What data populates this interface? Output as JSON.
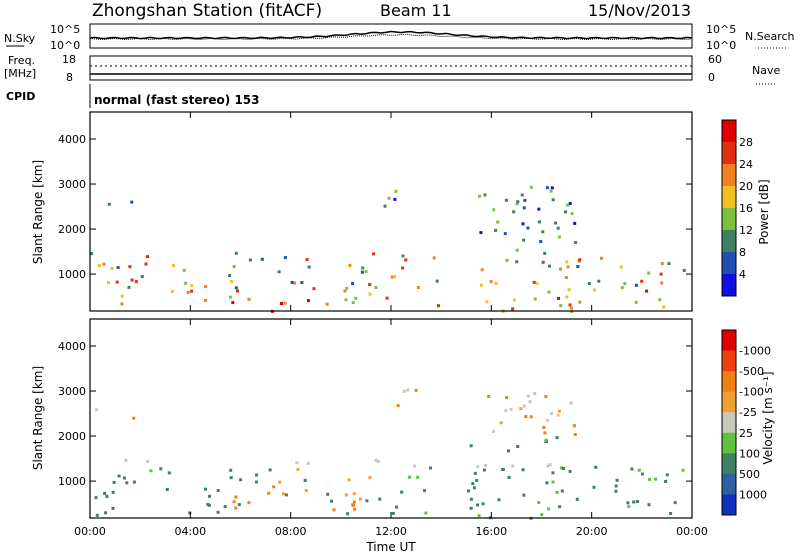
{
  "header": {
    "title": "Zhongshan Station (fitACF)",
    "beam": "Beam 11",
    "date": "15/Nov/2013"
  },
  "status_panel": {
    "nsky_label": "N.Sky",
    "nsearch_label": "N.Search",
    "noise_ticks_left": [
      "10^5",
      "10^0"
    ],
    "noise_ticks_right": [
      "10^5",
      "10^0"
    ],
    "freq_label_line1": "Freq.",
    "freq_label_line2": "[MHz]",
    "freq_ticks": [
      "18",
      "8"
    ],
    "nave_label": "Nave",
    "nave_ticks": [
      "60",
      "0"
    ],
    "cpid_label": "CPID",
    "cpid_text": "normal (fast stereo) 153"
  },
  "chart_data": [
    {
      "type": "heatmap",
      "name": "power",
      "ylabel": "Slant Range [km]",
      "xlabel": "Time UT",
      "yticks": [
        1000,
        2000,
        3000,
        4000
      ],
      "ylim": [
        180,
        4600
      ],
      "xlim": [
        0,
        24
      ],
      "xticks": [
        "00:00",
        "04:00",
        "08:00",
        "12:00",
        "16:00",
        "20:00",
        "00:00"
      ],
      "colorbar": {
        "label": "Power [dB]",
        "tick_labels": [
          "4",
          "8",
          "12",
          "16",
          "20",
          "24",
          "28"
        ],
        "colors": [
          "#1010e0",
          "#2050b0",
          "#408060",
          "#80c040",
          "#f0c020",
          "#f08020",
          "#e03010",
          "#e00000"
        ]
      }
    },
    {
      "type": "heatmap",
      "name": "velocity",
      "ylabel": "Slant Range [km]",
      "xlabel": "Time UT",
      "yticks": [
        1000,
        2000,
        3000,
        4000
      ],
      "ylim": [
        180,
        4600
      ],
      "xlim": [
        0,
        24
      ],
      "xticks": [
        "00:00",
        "04:00",
        "08:00",
        "12:00",
        "16:00",
        "20:00",
        "00:00"
      ],
      "colorbar": {
        "label": "Velocity [m s⁻¹]",
        "tick_labels": [
          "1000",
          "500",
          "100",
          "25",
          "-25",
          "-100",
          "-500",
          "-1000"
        ],
        "colors": [
          "#1030c0",
          "#3060a0",
          "#408060",
          "#60c040",
          "#c8c8b8",
          "#f0a030",
          "#f08010",
          "#f04010",
          "#e00000"
        ]
      }
    }
  ],
  "colors": {
    "background": "#ffffff",
    "axis": "#000000"
  }
}
